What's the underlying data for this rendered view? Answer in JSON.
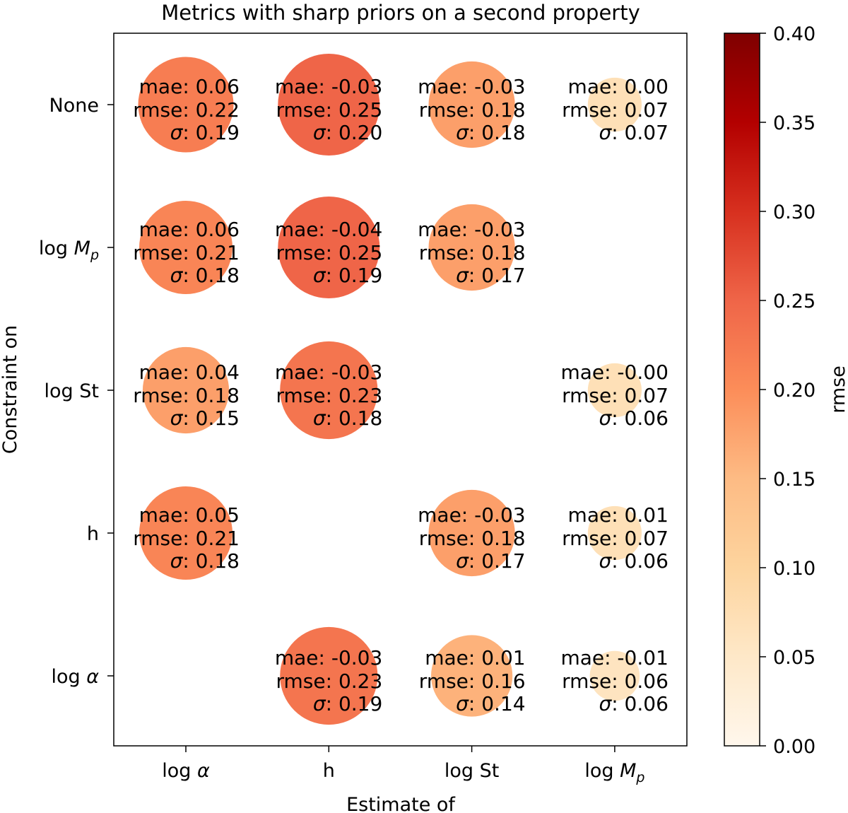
{
  "chart_data": {
    "type": "scatter",
    "title": "Metrics with sharp priors on a second property",
    "xlabel": "Estimate of",
    "ylabel": "Constraint on",
    "x_categories": [
      "log α",
      "h",
      "log St",
      "log M_p"
    ],
    "y_categories": [
      "None",
      "log M_p",
      "log St",
      "h",
      "log α"
    ],
    "x_tick_labels": [
      {
        "text": "log ",
        "italic": "α",
        "sub": ""
      },
      {
        "text": "h",
        "italic": "",
        "sub": ""
      },
      {
        "text": "log St",
        "italic": "",
        "sub": ""
      },
      {
        "text": "log ",
        "italic": "M",
        "sub": "p"
      }
    ],
    "y_tick_labels": [
      {
        "text": "None",
        "italic": "",
        "sub": ""
      },
      {
        "text": "log ",
        "italic": "M",
        "sub": "p"
      },
      {
        "text": "log St",
        "italic": "",
        "sub": ""
      },
      {
        "text": "h",
        "italic": "",
        "sub": ""
      },
      {
        "text": "log ",
        "italic": "α",
        "sub": ""
      }
    ],
    "metric_labels": {
      "mae": "mae: ",
      "rmse": "rmse: ",
      "sigma_symbol": "σ",
      "sigma_suffix": ": "
    },
    "colorbar": {
      "label": "rmse",
      "range": [
        0.0,
        0.4
      ],
      "ticks": [
        "0.00",
        "0.05",
        "0.10",
        "0.15",
        "0.20",
        "0.25",
        "0.30",
        "0.35",
        "0.40"
      ],
      "colormap": "OrRd",
      "colors": [
        "#fff7ec",
        "#fee8c8",
        "#fdd49e",
        "#fdbb84",
        "#fc8d59",
        "#ef6548",
        "#d7301f",
        "#b30000",
        "#7f0000"
      ]
    },
    "cells": [
      {
        "x": "log α",
        "y": "None",
        "mae": "0.06",
        "rmse": "0.22",
        "sigma": "0.19"
      },
      {
        "x": "h",
        "y": "None",
        "mae": "-0.03",
        "rmse": "0.25",
        "sigma": "0.20"
      },
      {
        "x": "log St",
        "y": "None",
        "mae": "-0.03",
        "rmse": "0.18",
        "sigma": "0.18"
      },
      {
        "x": "log M_p",
        "y": "None",
        "mae": "0.00",
        "rmse": "0.07",
        "sigma": "0.07"
      },
      {
        "x": "log α",
        "y": "log M_p",
        "mae": "0.06",
        "rmse": "0.21",
        "sigma": "0.18"
      },
      {
        "x": "h",
        "y": "log M_p",
        "mae": "-0.04",
        "rmse": "0.25",
        "sigma": "0.19"
      },
      {
        "x": "log St",
        "y": "log M_p",
        "mae": "-0.03",
        "rmse": "0.18",
        "sigma": "0.17"
      },
      {
        "x": "log α",
        "y": "log St",
        "mae": "0.04",
        "rmse": "0.18",
        "sigma": "0.15"
      },
      {
        "x": "h",
        "y": "log St",
        "mae": "-0.03",
        "rmse": "0.23",
        "sigma": "0.18"
      },
      {
        "x": "log M_p",
        "y": "log St",
        "mae": "-0.00",
        "rmse": "0.07",
        "sigma": "0.06"
      },
      {
        "x": "log α",
        "y": "h",
        "mae": "0.05",
        "rmse": "0.21",
        "sigma": "0.18"
      },
      {
        "x": "log St",
        "y": "h",
        "mae": "-0.03",
        "rmse": "0.18",
        "sigma": "0.17"
      },
      {
        "x": "log M_p",
        "y": "h",
        "mae": "0.01",
        "rmse": "0.07",
        "sigma": "0.06"
      },
      {
        "x": "h",
        "y": "log α",
        "mae": "-0.03",
        "rmse": "0.23",
        "sigma": "0.19"
      },
      {
        "x": "log St",
        "y": "log α",
        "mae": "0.01",
        "rmse": "0.16",
        "sigma": "0.14"
      },
      {
        "x": "log M_p",
        "y": "log α",
        "mae": "-0.01",
        "rmse": "0.06",
        "sigma": "0.06"
      }
    ]
  }
}
